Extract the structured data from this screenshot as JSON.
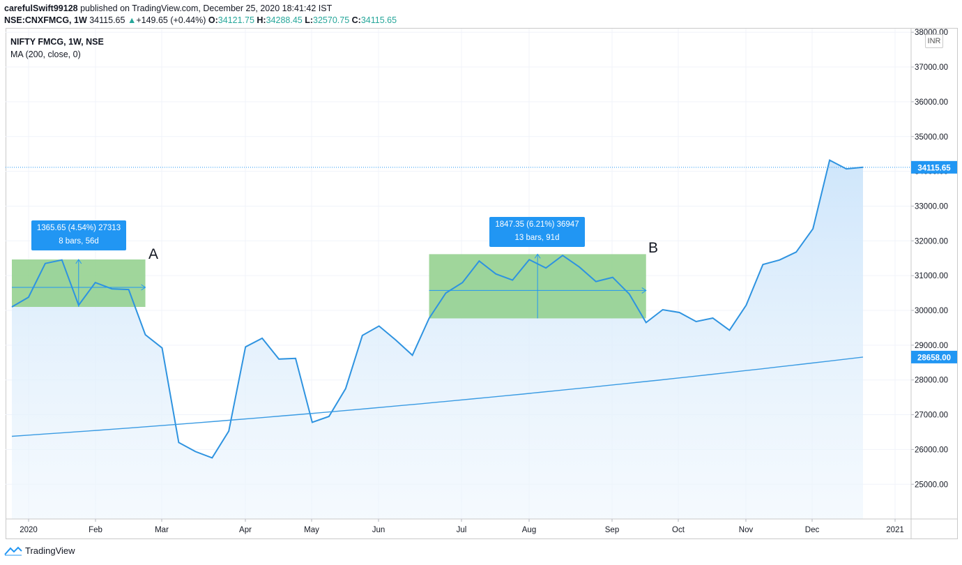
{
  "header": {
    "user": "carefulSwift99128",
    "published": "published on TradingView.com, December 25, 2020 18:41:42 IST",
    "symbol": "NSE:CNXFMCG, 1W",
    "last": "34115.65",
    "change": "+149.65 (+0.44%)",
    "o_label": "O:",
    "o_val": "34121.75",
    "h_label": "H:",
    "h_val": "34288.45",
    "l_label": "L:",
    "l_val": "32570.75",
    "c_label": "C:",
    "c_val": "34115.65"
  },
  "legend": {
    "title": "NIFTY FMCG, 1W, NSE",
    "indicator": "MA (200, close, 0)"
  },
  "currency": "INR",
  "footer": {
    "brand": "TradingView"
  },
  "annotations": {
    "a": {
      "letter": "A",
      "line1": "1365.65 (4.54%) 27313",
      "line2": "8 bars, 56d"
    },
    "b": {
      "letter": "B",
      "line1": "1847.35 (6.21%) 36947",
      "line2": "13 bars, 91d"
    }
  },
  "colors": {
    "price_line": "#2e93e0",
    "fill_top": "#cfe6fb",
    "ma_line": "#3a9be3",
    "range_box": "#8fcf8a",
    "label_bg": "#2196f3",
    "last_price_line": "#2196f3"
  },
  "chart_data": {
    "type": "area",
    "ylim": [
      24000,
      38000
    ],
    "y_ticks": [
      "38000.00",
      "37000.00",
      "36000.00",
      "35000.00",
      "34000.00",
      "33000.00",
      "32000.00",
      "31000.00",
      "30000.00",
      "29000.00",
      "28000.00",
      "27000.00",
      "26000.00",
      "25000.00"
    ],
    "x_ticks": [
      "2020",
      "Feb",
      "Mar",
      "Apr",
      "May",
      "Jun",
      "Jul",
      "Aug",
      "Sep",
      "Oct",
      "Nov",
      "Dec",
      "2021"
    ],
    "price_label": "34115.65",
    "ma_label": "28658.00",
    "series": [
      {
        "name": "NIFTY FMCG, 1W, NSE",
        "values": [
          30100,
          30380,
          31350,
          31450,
          30150,
          30800,
          30620,
          30600,
          29300,
          28920,
          26200,
          25940,
          25760,
          26530,
          28950,
          29200,
          28600,
          28620,
          26780,
          26950,
          27750,
          29280,
          29550,
          29150,
          28710,
          29770,
          30500,
          30800,
          31420,
          31050,
          30870,
          31460,
          31220,
          31580,
          31250,
          30830,
          30950,
          30470,
          29650,
          30020,
          29940,
          29680,
          29780,
          29430,
          30150,
          31320,
          31450,
          31680,
          32350,
          34320,
          34070,
          34115.65
        ]
      },
      {
        "name": "MA (200, close, 0)",
        "values": [
          26380,
          28658
        ]
      }
    ]
  }
}
